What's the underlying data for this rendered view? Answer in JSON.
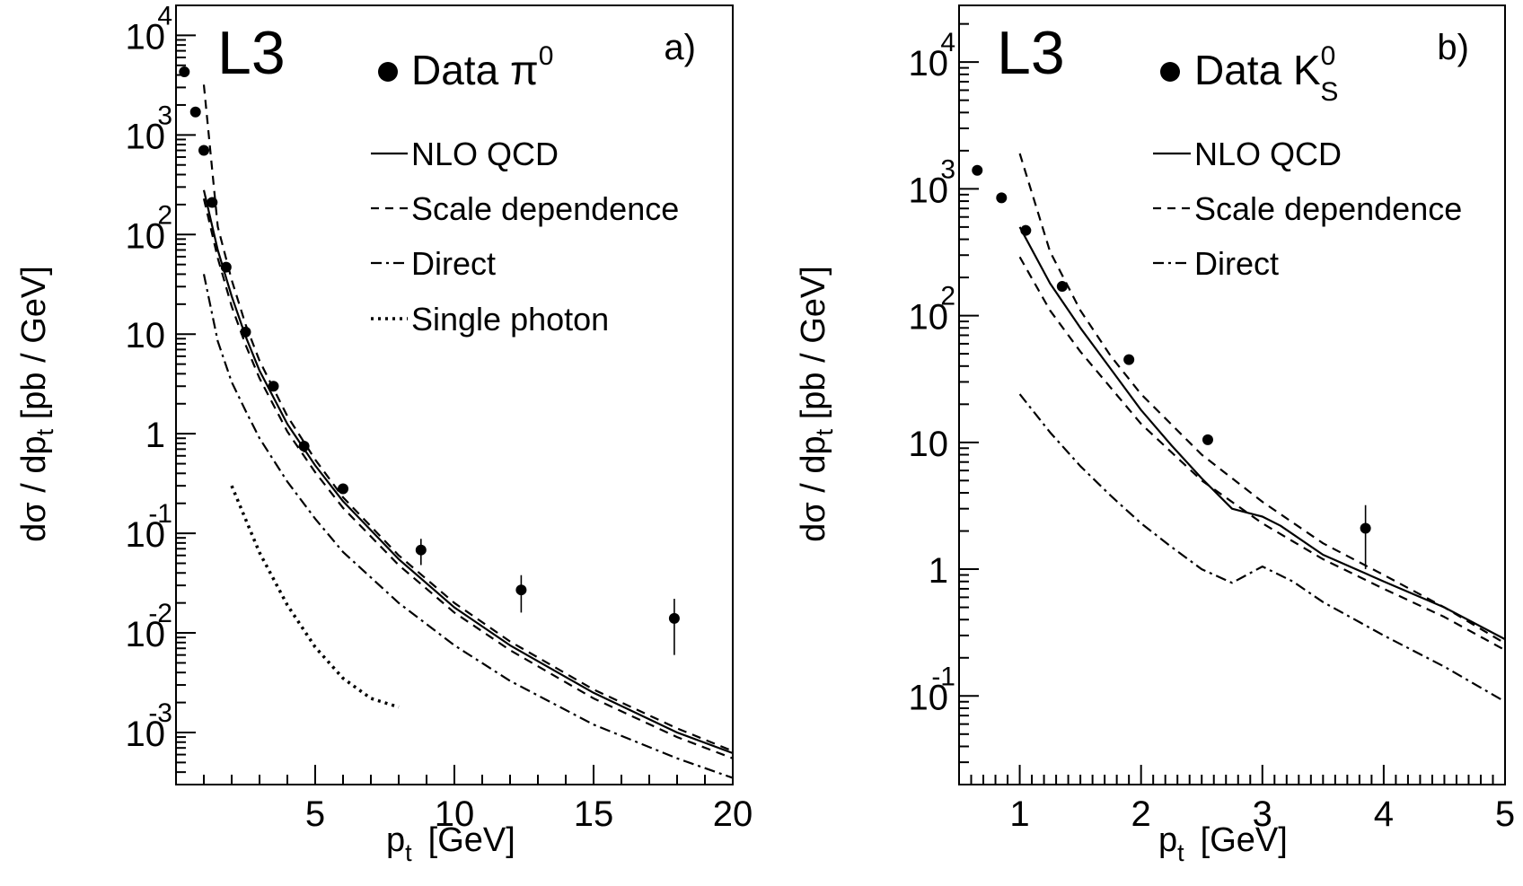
{
  "chart_data": [
    {
      "type": "scatter",
      "panel_label": "a)",
      "experiment": "L3",
      "xlabel": "p",
      "xlabel_sub": "t",
      "xlabel_unit": "[GeV]",
      "ylabel_pre": "dσ / dp",
      "ylabel_sub": "t",
      "ylabel_post": " [pb / GeV]",
      "xlim": [
        0,
        20
      ],
      "ylim": [
        0.0003,
        20000
      ],
      "yscale": "log",
      "xticks": [
        5,
        10,
        15,
        20
      ],
      "yticks": [
        {
          "value": 10000,
          "base": "10",
          "exp": "4"
        },
        {
          "value": 1000,
          "base": "10",
          "exp": "3"
        },
        {
          "value": 100,
          "base": "10",
          "exp": "2"
        },
        {
          "value": 10,
          "base": "10",
          "exp": ""
        },
        {
          "value": 1,
          "base": "1",
          "exp": ""
        },
        {
          "value": 0.1,
          "base": "10",
          "exp": "-1"
        },
        {
          "value": 0.01,
          "base": "10",
          "exp": "-2"
        },
        {
          "value": 0.001,
          "base": "10",
          "exp": "-3"
        }
      ],
      "legend": [
        {
          "style": "marker",
          "label": "Data π",
          "sup": "0",
          "sub": ""
        },
        {
          "style": "solid",
          "label": "NLO QCD"
        },
        {
          "style": "dashed",
          "label": "Scale dependence"
        },
        {
          "style": "dashdot",
          "label": "Direct"
        },
        {
          "style": "dotted",
          "label": "Single photon"
        }
      ],
      "points": [
        {
          "x": 0.3,
          "y": 4300,
          "err": 0
        },
        {
          "x": 0.7,
          "y": 1700,
          "err": 0
        },
        {
          "x": 1.0,
          "y": 700,
          "err": 0
        },
        {
          "x": 1.3,
          "y": 210,
          "err": 0
        },
        {
          "x": 1.8,
          "y": 47,
          "err": 0
        },
        {
          "x": 2.5,
          "y": 10.5,
          "err": 0
        },
        {
          "x": 3.5,
          "y": 3.0,
          "err": 0
        },
        {
          "x": 4.6,
          "y": 0.75,
          "err": 0.1
        },
        {
          "x": 6.0,
          "y": 0.28,
          "err": 0.03
        },
        {
          "x": 8.8,
          "y": 0.068,
          "err": 0.02
        },
        {
          "x": 12.4,
          "y": 0.027,
          "err": 0.011
        },
        {
          "x": 17.9,
          "y": 0.014,
          "err": 0.008
        }
      ],
      "curves": [
        {
          "name": "NLO QCD",
          "style": "solid",
          "x": [
            1.0,
            1.5,
            2.0,
            2.5,
            3.0,
            4.0,
            5.0,
            6.0,
            8.0,
            10.0,
            12.0,
            15.0,
            18.0,
            20.0
          ],
          "y": [
            280,
            70,
            24,
            9.5,
            4.3,
            1.25,
            0.48,
            0.21,
            0.055,
            0.018,
            0.0075,
            0.0025,
            0.001,
            0.00062
          ]
        },
        {
          "name": "Scale dependence upper",
          "style": "dashed",
          "x": [
            1.0,
            1.5,
            2.0,
            2.5,
            3.0,
            4.0,
            5.0,
            6.0,
            8.0,
            10.0,
            12.0,
            15.0,
            18.0,
            20.0
          ],
          "y": [
            3200,
            120,
            35,
            12.5,
            5.4,
            1.5,
            0.55,
            0.23,
            0.06,
            0.02,
            0.0082,
            0.0027,
            0.0011,
            0.00065
          ]
        },
        {
          "name": "Scale dependence lower",
          "style": "dashed",
          "x": [
            1.0,
            1.5,
            2.0,
            2.5,
            3.0,
            4.0,
            5.0,
            6.0,
            8.0,
            10.0,
            12.0,
            15.0,
            18.0,
            20.0
          ],
          "y": [
            230,
            58,
            19,
            7.8,
            3.6,
            1.05,
            0.41,
            0.18,
            0.048,
            0.016,
            0.0067,
            0.0022,
            0.0009,
            0.00055
          ]
        },
        {
          "name": "Direct",
          "style": "dashdot",
          "x": [
            1.0,
            1.5,
            2.0,
            2.5,
            3.0,
            4.0,
            5.0,
            6.0,
            8.0,
            10.0,
            12.0,
            15.0,
            18.0,
            20.0
          ],
          "y": [
            40,
            8.5,
            3.3,
            1.7,
            0.9,
            0.33,
            0.14,
            0.065,
            0.02,
            0.0075,
            0.0033,
            0.0012,
            0.00055,
            0.00035
          ]
        },
        {
          "name": "Single photon",
          "style": "dotted",
          "x": [
            2.0,
            3.0,
            4.0,
            5.0,
            6.0,
            7.0,
            8.0
          ],
          "y": [
            0.3,
            0.064,
            0.019,
            0.0072,
            0.0035,
            0.0022,
            0.0018
          ]
        }
      ]
    },
    {
      "type": "scatter",
      "panel_label": "b)",
      "experiment": "L3",
      "xlabel": "p",
      "xlabel_sub": "t",
      "xlabel_unit": "[GeV]",
      "ylabel_pre": "dσ / dp",
      "ylabel_sub": "t",
      "ylabel_post": " [pb / GeV]",
      "xlim": [
        0.5,
        5
      ],
      "ylim": [
        0.02,
        28000
      ],
      "yscale": "log",
      "xticks": [
        1,
        2,
        3,
        4,
        5
      ],
      "yticks": [
        {
          "value": 10000,
          "base": "10",
          "exp": "4"
        },
        {
          "value": 1000,
          "base": "10",
          "exp": "3"
        },
        {
          "value": 100,
          "base": "10",
          "exp": "2"
        },
        {
          "value": 10,
          "base": "10",
          "exp": ""
        },
        {
          "value": 1,
          "base": "1",
          "exp": ""
        },
        {
          "value": 0.1,
          "base": "10",
          "exp": "-1"
        }
      ],
      "legend": [
        {
          "style": "marker",
          "label": "Data K",
          "sup": "0",
          "sub": "S"
        },
        {
          "style": "solid",
          "label": "NLO QCD"
        },
        {
          "style": "dashed",
          "label": "Scale dependence"
        },
        {
          "style": "dashdot",
          "label": "Direct"
        }
      ],
      "points": [
        {
          "x": 0.65,
          "y": 1400,
          "err": 0
        },
        {
          "x": 0.85,
          "y": 850,
          "err": 0
        },
        {
          "x": 1.05,
          "y": 470,
          "err": 0
        },
        {
          "x": 1.35,
          "y": 170,
          "err": 0
        },
        {
          "x": 1.9,
          "y": 45,
          "err": 0
        },
        {
          "x": 2.55,
          "y": 10.5,
          "err": 0
        },
        {
          "x": 3.85,
          "y": 2.1,
          "err": 1.1
        }
      ],
      "curves": [
        {
          "name": "NLO QCD",
          "style": "solid",
          "x": [
            1.0,
            1.25,
            1.5,
            1.75,
            2.0,
            2.25,
            2.5,
            2.75,
            3.0,
            3.15,
            3.5,
            4.0,
            4.5,
            5.0
          ],
          "y": [
            500,
            180,
            80,
            38,
            18,
            9.5,
            5.2,
            3.0,
            2.6,
            2.2,
            1.3,
            0.8,
            0.5,
            0.28
          ]
        },
        {
          "name": "Scale dependence upper",
          "style": "dashed",
          "x": [
            1.0,
            1.25,
            1.5,
            1.75,
            2.0,
            2.5,
            3.0,
            3.5,
            4.0,
            4.5,
            5.0
          ],
          "y": [
            1900,
            320,
            110,
            48,
            24,
            8.0,
            3.4,
            1.6,
            0.9,
            0.5,
            0.26
          ]
        },
        {
          "name": "Scale dependence lower",
          "style": "dashed",
          "x": [
            1.0,
            1.25,
            1.5,
            1.75,
            2.0,
            2.5,
            3.0,
            3.5,
            4.0,
            4.5,
            5.0
          ],
          "y": [
            290,
            110,
            52,
            27,
            14,
            5.0,
            2.3,
            1.2,
            0.7,
            0.42,
            0.23
          ]
        },
        {
          "name": "Direct",
          "style": "dashdot",
          "x": [
            1.0,
            1.25,
            1.5,
            1.75,
            2.0,
            2.25,
            2.5,
            2.75,
            3.0,
            3.25,
            3.5,
            4.0,
            4.5,
            5.0
          ],
          "y": [
            24,
            12,
            6.5,
            3.8,
            2.3,
            1.5,
            1.0,
            0.78,
            1.05,
            0.8,
            0.55,
            0.3,
            0.17,
            0.09
          ]
        }
      ]
    }
  ]
}
